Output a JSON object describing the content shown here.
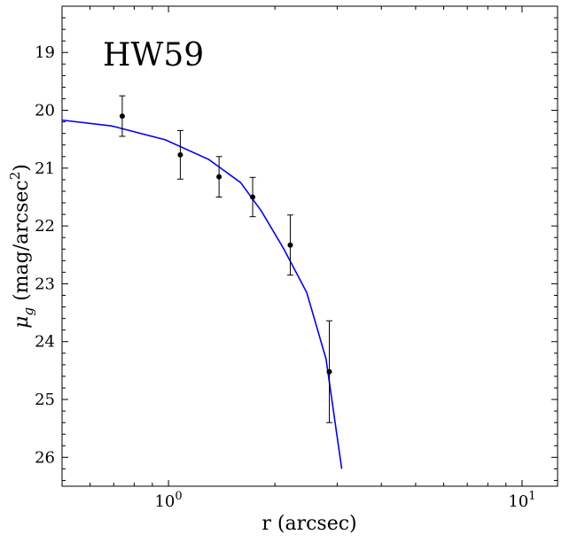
{
  "chart_data": {
    "type": "scatter",
    "panel_label": "HW59",
    "xlabel": "r (arcsec)",
    "ylabel_main": "μ",
    "ylabel_sub": "g",
    "ylabel_rest": " (mag/arcsec",
    "ylabel_sup": "2",
    "ylabel_close": ")",
    "x_scale": "log",
    "xlim": [
      0.5,
      12.6
    ],
    "ylim": [
      26.5,
      18.2
    ],
    "y_inverted": true,
    "x_ticks": [
      {
        "value": 1,
        "label_base": "10",
        "label_exp": "0"
      },
      {
        "value": 10,
        "label_base": "10",
        "label_exp": "1"
      }
    ],
    "y_ticks": [
      {
        "value": 19,
        "label": "19"
      },
      {
        "value": 20,
        "label": "20"
      },
      {
        "value": 21,
        "label": "21"
      },
      {
        "value": 22,
        "label": "22"
      },
      {
        "value": 23,
        "label": "23"
      },
      {
        "value": 24,
        "label": "24"
      },
      {
        "value": 25,
        "label": "25"
      },
      {
        "value": 26,
        "label": "26"
      }
    ],
    "grid": false,
    "colors": {
      "points": "#000000",
      "model_line": "#0000ff"
    },
    "points": [
      {
        "x": 0.74,
        "y": 20.1,
        "yerr_low": 0.35,
        "yerr_high": 0.35
      },
      {
        "x": 1.08,
        "y": 20.77,
        "yerr_low": 0.42,
        "yerr_high": 0.42
      },
      {
        "x": 1.39,
        "y": 21.15,
        "yerr_low": 0.35,
        "yerr_high": 0.35
      },
      {
        "x": 1.73,
        "y": 21.5,
        "yerr_low": 0.34,
        "yerr_high": 0.34
      },
      {
        "x": 2.21,
        "y": 22.33,
        "yerr_low": 0.52,
        "yerr_high": 0.52
      },
      {
        "x": 2.85,
        "y": 24.52,
        "yerr_low": 0.88,
        "yerr_high": 0.88
      }
    ],
    "model_line": {
      "x": [
        0.5,
        0.69,
        0.98,
        1.3,
        1.6,
        1.83,
        2.12,
        2.46,
        2.79,
        3.09
      ],
      "y": [
        20.17,
        20.27,
        20.51,
        20.85,
        21.25,
        21.74,
        22.4,
        23.15,
        24.3,
        26.2
      ]
    }
  }
}
